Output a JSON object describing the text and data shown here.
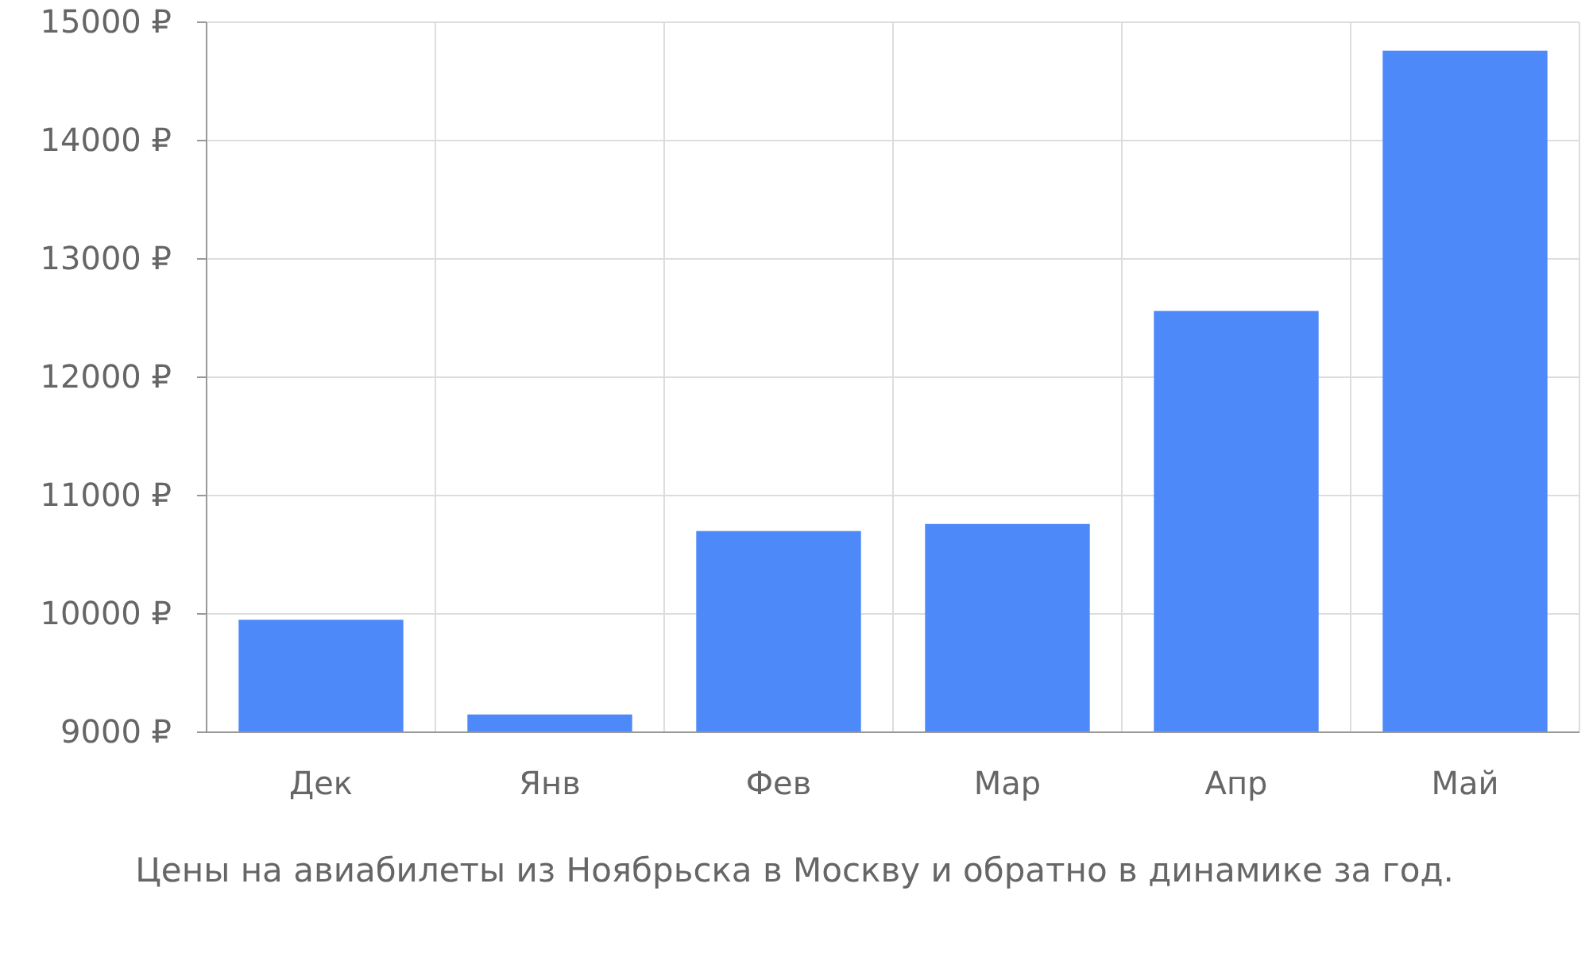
{
  "chart_data": {
    "type": "bar",
    "title": "Цены на авиабилеты из Ноябрьска в Москву и обратно в динамике за год.",
    "categories": [
      "Дек",
      "Янв",
      "Фев",
      "Мар",
      "Апр",
      "Май"
    ],
    "values": [
      9950,
      9150,
      10700,
      10760,
      12560,
      14760
    ],
    "color": "#4d89f9",
    "ylim": [
      9000,
      15000
    ],
    "yticks": [
      {
        "value": 9000,
        "label": "9000 ₽"
      },
      {
        "value": 10000,
        "label": "10000 ₽"
      },
      {
        "value": 11000,
        "label": "11000 ₽"
      },
      {
        "value": 12000,
        "label": "12000 ₽"
      },
      {
        "value": 13000,
        "label": "13000 ₽"
      },
      {
        "value": 14000,
        "label": "14000 ₽"
      },
      {
        "value": 15000,
        "label": "15000 ₽"
      }
    ],
    "grid": true
  }
}
